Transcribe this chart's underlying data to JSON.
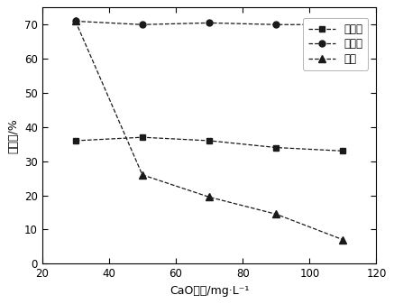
{
  "x": [
    30,
    50,
    70,
    90,
    110
  ],
  "magnetite": [
    36,
    37,
    36,
    34,
    33
  ],
  "hematite": [
    71,
    70,
    70.5,
    70,
    70
  ],
  "quartz": [
    71,
    26,
    19.5,
    14.5,
    7
  ],
  "xlim": [
    20,
    120
  ],
  "ylim": [
    0,
    75
  ],
  "xticks": [
    20,
    40,
    60,
    80,
    100,
    120
  ],
  "yticks": [
    0,
    10,
    20,
    30,
    40,
    50,
    60,
    70
  ],
  "xlabel": "CaO用量/mg·L⁻¹",
  "ylabel": "回收率/%",
  "legend_magnetite": "磁铁矿",
  "legend_hematite": "赤铁矿",
  "legend_quartz": "石英",
  "line_color": "#1a1a1a",
  "bg_color": "#ffffff"
}
